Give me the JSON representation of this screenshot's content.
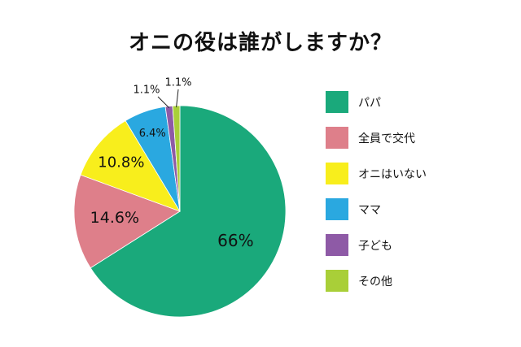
{
  "chart_data": {
    "type": "pie",
    "title": "オニの役は誰がしますか？",
    "categories": [
      "パパ",
      "全員で交代",
      "オニはいない",
      "ママ",
      "子ども",
      "その他"
    ],
    "values": [
      66,
      14.6,
      10.8,
      6.4,
      1.1,
      1.1
    ],
    "data_labels": [
      "66%",
      "14.6%",
      "10.8%",
      "6.4%",
      "1.1%",
      "1.1%"
    ],
    "colors": [
      "#1aa97b",
      "#de7f8a",
      "#f8ee1c",
      "#2aa8e0",
      "#8e5aa6",
      "#a9cf38"
    ],
    "legend_position": "right"
  }
}
